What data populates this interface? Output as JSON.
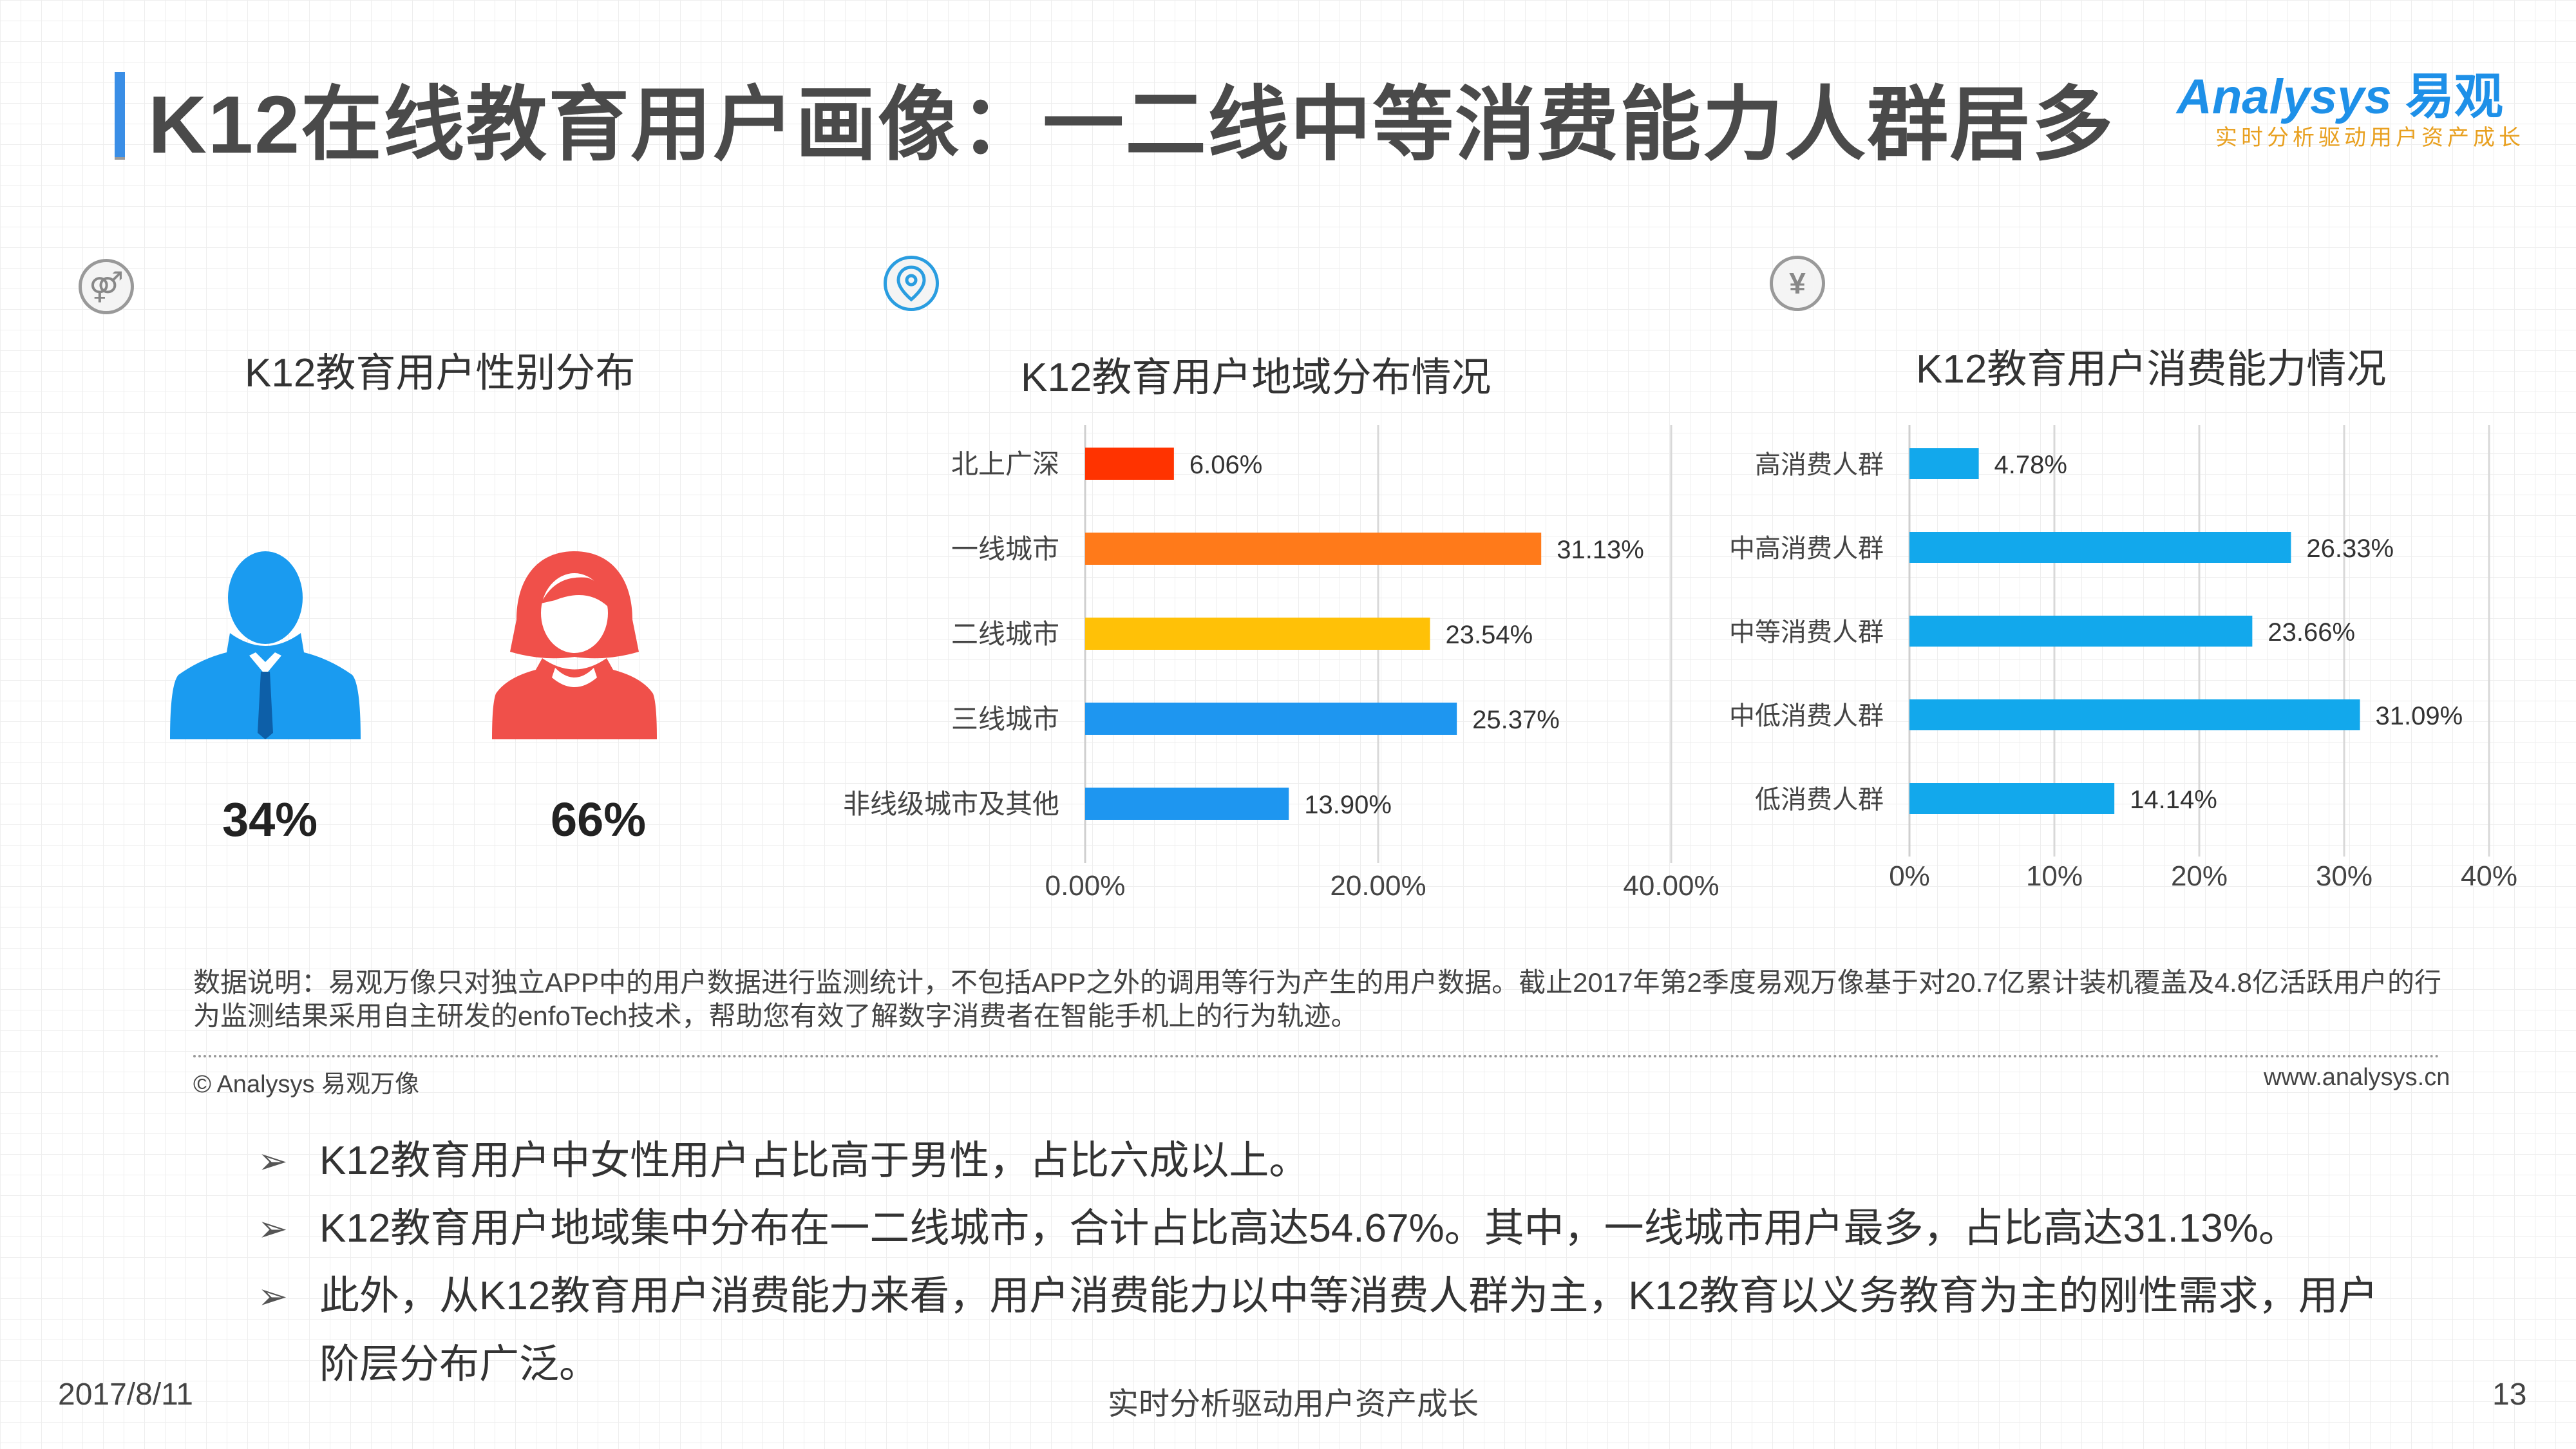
{
  "header": {
    "title": "K12在线教育用户画像：一二线中等消费能力人群居多",
    "logo": {
      "name_en": "Analysys",
      "name_cn": "易观",
      "tagline": "实时分析驱动用户资产成长"
    }
  },
  "sections": {
    "gender": {
      "title": "K12教育用户性别分布",
      "icon": "gender-icon",
      "male_percent": "34%",
      "female_percent": "66%",
      "male_color": "#1a9bf0",
      "female_color": "#f0504a"
    },
    "region": {
      "title": "K12教育用户地域分布情况",
      "icon": "location-pin-icon"
    },
    "consumption": {
      "title": "K12教育用户消费能力情况",
      "icon": "yen-icon"
    }
  },
  "chart_data": [
    {
      "type": "bar",
      "orientation": "horizontal",
      "title": "K12教育用户地域分布情况",
      "categories": [
        "北上广深",
        "一线城市",
        "二线城市",
        "三线城市",
        "非线级城市及其他"
      ],
      "values": [
        6.06,
        31.13,
        23.54,
        25.37,
        13.9
      ],
      "data_labels": [
        "6.06%",
        "31.13%",
        "23.54%",
        "25.37%",
        "13.90%"
      ],
      "colors": [
        "#ff3300",
        "#ff7a1a",
        "#ffc107",
        "#1e96f0",
        "#1e96f0"
      ],
      "xlim": [
        0,
        40
      ],
      "xticks": [
        0,
        20,
        40
      ],
      "xtick_labels": [
        "0.00%",
        "20.00%",
        "40.00%"
      ],
      "grid": true
    },
    {
      "type": "bar",
      "orientation": "horizontal",
      "title": "K12教育用户消费能力情况",
      "categories": [
        "高消费人群",
        "中高消费人群",
        "中等消费人群",
        "中低消费人群",
        "低消费人群"
      ],
      "values": [
        4.78,
        26.33,
        23.66,
        31.09,
        14.14
      ],
      "data_labels": [
        "4.78%",
        "26.33%",
        "23.66%",
        "31.09%",
        "14.14%"
      ],
      "colors": [
        "#12a8ec",
        "#12a8ec",
        "#12a8ec",
        "#12a8ec",
        "#12a8ec"
      ],
      "xlim": [
        0,
        40
      ],
      "xticks": [
        0,
        10,
        20,
        30,
        40
      ],
      "xtick_labels": [
        "0%",
        "10%",
        "20%",
        "30%",
        "40%"
      ],
      "grid": true
    }
  ],
  "notes": {
    "text": "数据说明：易观万像只对独立APP中的用户数据进行监测统计，不包括APP之外的调用等行为产生的用户数据。截止2017年第2季度易观万像基于对20.7亿累计装机覆盖及4.8亿活跃用户的行为监测结果采用自主研发的enfoTech技术，帮助您有效了解数字消费者在智能手机上的行为轨迹。",
    "copyright": "© Analysys 易观万像",
    "website": "www.analysys.cn"
  },
  "bullets": [
    "K12教育用户中女性用户占比高于男性，占比六成以上。",
    "K12教育用户地域集中分布在一二线城市，合计占比高达54.67%。其中，一线城市用户最多，占比高达31.13%。",
    "此外，从K12教育用户消费能力来看，用户消费能力以中等消费人群为主，K12教育以义务教育为主的刚性需求，用户阶层分布广泛。"
  ],
  "footer": {
    "date": "2017/8/11",
    "slogan": "实时分析驱动用户资产成长",
    "page": "13"
  }
}
